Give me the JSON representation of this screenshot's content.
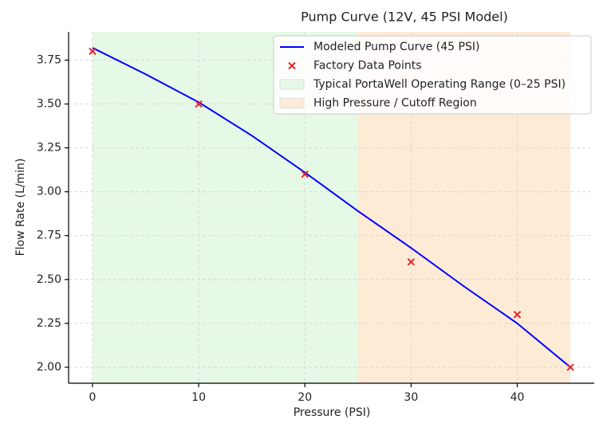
{
  "chart_data": {
    "type": "line",
    "title": "Pump Curve (12V, 45 PSI Model)",
    "x_label": "Pressure (PSI)",
    "y_label": "Flow Rate (L/min)",
    "xlim": [
      -2.25,
      47.25
    ],
    "xticks": [
      0,
      10,
      20,
      30,
      40
    ],
    "ylim": [
      1.909,
      3.911
    ],
    "yticks": [
      {
        "value": 2.0,
        "label": "2.00"
      },
      {
        "value": 2.25,
        "label": "2.25"
      },
      {
        "value": 2.5,
        "label": "2.50"
      },
      {
        "value": 2.75,
        "label": "2.75"
      },
      {
        "value": 3.0,
        "label": "3.00"
      },
      {
        "value": 3.25,
        "label": "3.25"
      },
      {
        "value": 3.5,
        "label": "3.50"
      },
      {
        "value": 3.75,
        "label": "3.75"
      }
    ],
    "grid": true,
    "legend": "upper right",
    "spans": [
      {
        "name": "Typical PortaWell Operating Range (0–25 PSI)",
        "from": 0,
        "to": 25,
        "color": "#e6f8e6"
      },
      {
        "name": "High Pressure / Cutoff Region",
        "from": 25,
        "to": 45,
        "color": "#fdebd6"
      }
    ],
    "series": [
      {
        "name": "Modeled Pump Curve (45 PSI)",
        "kind": "line",
        "color": "#0000ff",
        "x": [
          0,
          5,
          10,
          15,
          20,
          25,
          30,
          35,
          40,
          45
        ],
        "values": [
          3.82,
          3.67,
          3.51,
          3.32,
          3.11,
          2.89,
          2.68,
          2.46,
          2.25,
          2.0
        ]
      },
      {
        "name": "Factory Data Points",
        "kind": "scatter",
        "color": "#e8242a",
        "x": [
          0,
          10,
          20,
          30,
          40,
          45
        ],
        "values": [
          3.8,
          3.5,
          3.1,
          2.6,
          2.3,
          2.0
        ]
      }
    ]
  }
}
